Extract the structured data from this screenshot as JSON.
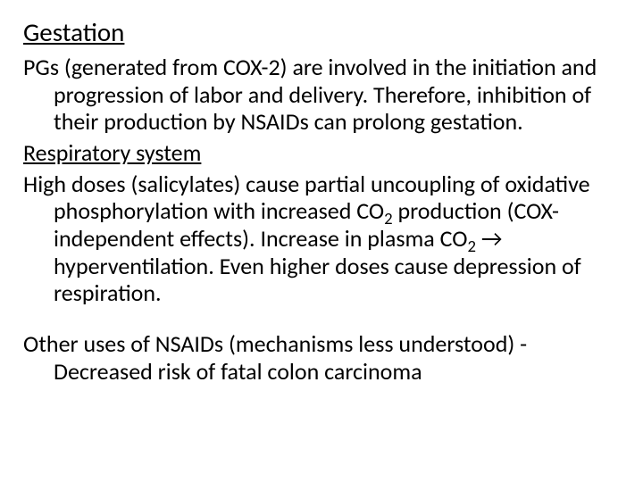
{
  "heading": "Gestation",
  "para1_a": "PGs (generated from COX-2) are involved in the initiation and progression of labor and delivery.  Therefore, inhibition of their production by NSAIDs can prolong gestation.",
  "para2_head": "Respiratory system ",
  "para3_a": "High doses (salicylates) cause partial uncoupling of oxidative phosphorylation with increased CO",
  "para3_sub1": "2",
  "para3_b": " production (COX-independent effects).  Increase in plasma CO",
  "para3_sub2": "2",
  "para3_c": " → hyperventilation.  Even higher doses cause depression of respiration.",
  "para4": "Other uses of NSAIDs (mechanisms less understood) - Decreased risk of fatal colon carcinoma",
  "colors": {
    "text": "#000000",
    "background": "#ffffff"
  },
  "font": {
    "family": "Calibri",
    "heading_size_pt": 29,
    "body_size_pt": 26
  }
}
